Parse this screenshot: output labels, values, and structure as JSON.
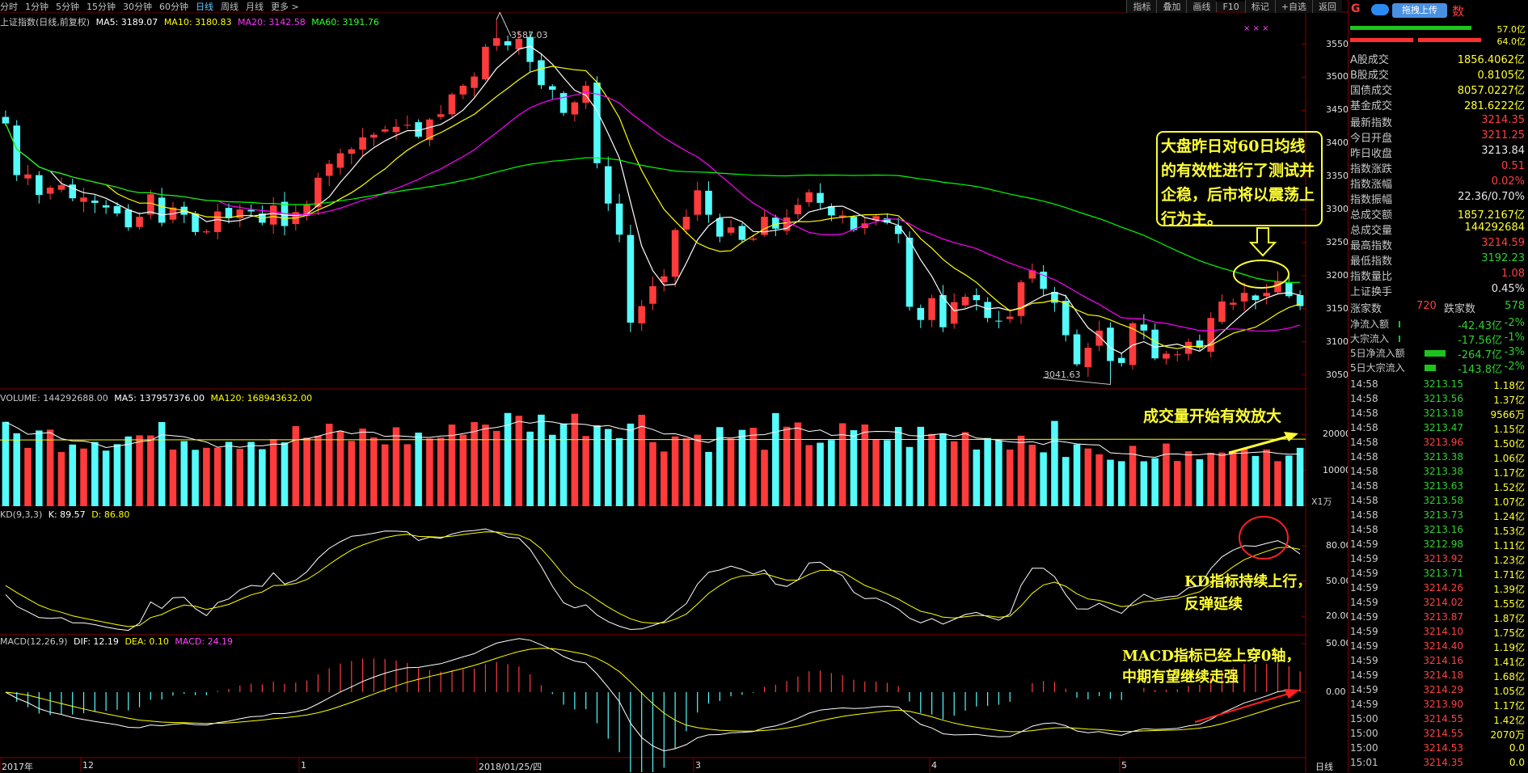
{
  "toolbar": {
    "timeframes": [
      "分时",
      "1分钟",
      "5分钟",
      "15分钟",
      "30分钟",
      "60分钟",
      "日线",
      "周线",
      "月线",
      "更多 >"
    ],
    "active": "日线",
    "right_buttons": [
      "指标",
      "叠加",
      "画线",
      "F10",
      "标记",
      "+自选",
      "返回"
    ]
  },
  "main_legend": {
    "title": "上证指数(日线,前复权)",
    "ma5": "MA5: 3189.07",
    "ma10": "MA10: 3180.83",
    "ma20": "MA20: 3142.58",
    "ma60": "MA60: 3191.76",
    "high_label": "3587.03",
    "low_label": "3041.63",
    "marks": "× × ×"
  },
  "price_axis": [
    "3550",
    "3500",
    "3450",
    "3400",
    "3350",
    "3300",
    "3250",
    "3200",
    "3150",
    "3100",
    "3050"
  ],
  "volume_legend": {
    "title": "VOLUME: 144292688.00",
    "ma5": "MA5: 137957376.00",
    "ma120": "MA120: 168943632.00",
    "unit": "X1万",
    "axis": [
      "20000",
      "10000"
    ]
  },
  "kd_legend": {
    "title": "KD(9,3,3)",
    "k": "K: 89.57",
    "d": "D: 86.80",
    "axis": [
      "80.00",
      "50.00",
      "20.00"
    ]
  },
  "macd_legend": {
    "title": "MACD(12,26,9)",
    "dif": "DIF: 12.19",
    "dea": "DEA: 0.10",
    "macd": "MACD: 24.19",
    "axis": [
      "50.00",
      "0.00"
    ]
  },
  "date_axis": {
    "labels": [
      "2017年",
      "12",
      "1",
      "2018/01/25/四",
      "3",
      "4",
      "5"
    ],
    "period": "日线"
  },
  "annotations": {
    "box": "大盘昨日对60日均线的有效性进行了测试并企稳，后市将以震荡上行为主。",
    "volume": "成交量开始有效放大",
    "kd_line1": "KD指标持续上行，",
    "kd_line2": "反弹延续",
    "macd_line1": "MACD指标已经上穿0轴，",
    "macd_line2": "中期有望继续走强"
  },
  "panel": {
    "header_left": "G",
    "upload_button": "拖拽上传",
    "header_right": "数",
    "bar_values": [
      "57.0亿",
      "64.0亿"
    ],
    "turnover": [
      {
        "k": "A股成交",
        "v": "1856.4062亿"
      },
      {
        "k": "B股成交",
        "v": "0.8105亿"
      },
      {
        "k": "国债成交",
        "v": "8057.0227亿"
      },
      {
        "k": "基金成交",
        "v": "281.6222亿"
      }
    ],
    "stats": [
      {
        "k": "最新指数",
        "v": "3214.35",
        "c": "red"
      },
      {
        "k": "今日开盘",
        "v": "3211.25",
        "c": "red"
      },
      {
        "k": "昨日收盘",
        "v": "3213.84",
        "c": "wht"
      },
      {
        "k": "指数涨跌",
        "v": "0.51",
        "c": "red"
      },
      {
        "k": "指数涨幅",
        "v": "0.02%",
        "c": "red"
      },
      {
        "k": "指数振幅",
        "v": "22.36/0.70%",
        "c": "wht"
      },
      {
        "k": "总成交额",
        "v": "1857.2167亿",
        "c": "yel"
      },
      {
        "k": "总成交量",
        "v": "144292684",
        "c": "yel"
      },
      {
        "k": "最高指数",
        "v": "3214.59",
        "c": "red"
      },
      {
        "k": "最低指数",
        "v": "3192.23",
        "c": "green"
      },
      {
        "k": "指数量比",
        "v": "1.08",
        "c": "red"
      },
      {
        "k": "上证换手",
        "v": "0.45%",
        "c": "wht"
      }
    ],
    "updown": {
      "up_label": "涨家数",
      "up": "720",
      "down_label": "跌家数",
      "down": "578"
    },
    "flows": [
      {
        "k": "净流入额",
        "v": "-42.43亿",
        "p": "-2%"
      },
      {
        "k": "大宗流入",
        "v": "-17.56亿",
        "p": "-1%"
      },
      {
        "k": "5日净流入额",
        "v": "-264.7亿",
        "p": "-3%"
      },
      {
        "k": "5日大宗流入",
        "v": "-143.8亿",
        "p": "-2%"
      }
    ],
    "ticks": [
      {
        "t": "14:58",
        "p": "3213.15",
        "q": "1.18亿",
        "c": "green"
      },
      {
        "t": "14:58",
        "p": "3213.56",
        "q": "1.37亿",
        "c": "green"
      },
      {
        "t": "14:58",
        "p": "3213.18",
        "q": "9566万",
        "c": "green"
      },
      {
        "t": "14:58",
        "p": "3213.47",
        "q": "1.15亿",
        "c": "green"
      },
      {
        "t": "14:58",
        "p": "3213.96",
        "q": "1.50亿",
        "c": "red"
      },
      {
        "t": "14:58",
        "p": "3213.38",
        "q": "1.06亿",
        "c": "green"
      },
      {
        "t": "14:58",
        "p": "3213.38",
        "q": "1.17亿",
        "c": "green"
      },
      {
        "t": "14:58",
        "p": "3213.63",
        "q": "1.52亿",
        "c": "green"
      },
      {
        "t": "14:58",
        "p": "3213.58",
        "q": "1.07亿",
        "c": "green"
      },
      {
        "t": "14:58",
        "p": "3213.73",
        "q": "1.24亿",
        "c": "green"
      },
      {
        "t": "14:58",
        "p": "3213.16",
        "q": "1.53亿",
        "c": "green"
      },
      {
        "t": "14:59",
        "p": "3212.98",
        "q": "1.11亿",
        "c": "green"
      },
      {
        "t": "14:59",
        "p": "3213.92",
        "q": "1.23亿",
        "c": "red"
      },
      {
        "t": "14:59",
        "p": "3213.71",
        "q": "1.71亿",
        "c": "green"
      },
      {
        "t": "14:59",
        "p": "3214.26",
        "q": "1.39亿",
        "c": "red"
      },
      {
        "t": "14:59",
        "p": "3214.02",
        "q": "1.55亿",
        "c": "red"
      },
      {
        "t": "14:59",
        "p": "3213.87",
        "q": "1.87亿",
        "c": "red"
      },
      {
        "t": "14:59",
        "p": "3214.10",
        "q": "1.75亿",
        "c": "red"
      },
      {
        "t": "14:59",
        "p": "3214.40",
        "q": "1.19亿",
        "c": "red"
      },
      {
        "t": "14:59",
        "p": "3214.16",
        "q": "1.41亿",
        "c": "red"
      },
      {
        "t": "14:59",
        "p": "3214.18",
        "q": "1.68亿",
        "c": "red"
      },
      {
        "t": "14:59",
        "p": "3214.29",
        "q": "1.05亿",
        "c": "red"
      },
      {
        "t": "14:59",
        "p": "3213.90",
        "q": "1.17亿",
        "c": "red"
      },
      {
        "t": "15:00",
        "p": "3214.55",
        "q": "1.42亿",
        "c": "red"
      },
      {
        "t": "15:00",
        "p": "3214.55",
        "q": "2070万",
        "c": "red"
      },
      {
        "t": "15:00",
        "p": "3214.53",
        "q": "0.0",
        "c": "red"
      },
      {
        "t": "15:01",
        "p": "3214.35",
        "q": "0.0",
        "c": "red"
      }
    ]
  },
  "colors": {
    "up": "#ff3b3b",
    "down": "#54fcfc",
    "ma5": "#ffffff",
    "ma10": "#ffff00",
    "ma20": "#ff00ff",
    "ma60": "#00ff00",
    "grid": "#8b0000",
    "annot": "#ffff33"
  },
  "chart_data": {
    "type": "candlestick",
    "title": "上证指数(日线,前复权)",
    "ylim": [
      3030,
      3580
    ],
    "x": [
      "2017-11-22",
      "2017-11-23",
      "2017-11-24",
      "2017-11-27",
      "2017-11-28",
      "2017-11-29",
      "2017-11-30",
      "2017-12-01",
      "2017-12-04",
      "2017-12-05",
      "2017-12-06",
      "2017-12-07",
      "2017-12-08",
      "2017-12-11",
      "2017-12-12",
      "2017-12-13",
      "2017-12-14",
      "2017-12-15",
      "2017-12-18",
      "2017-12-19",
      "2017-12-20",
      "2017-12-21",
      "2017-12-22",
      "2017-12-25",
      "2017-12-26",
      "2017-12-27",
      "2017-12-28",
      "2017-12-29",
      "2018-01-02",
      "2018-01-03",
      "2018-01-04",
      "2018-01-05",
      "2018-01-08",
      "2018-01-09",
      "2018-01-10",
      "2018-01-11",
      "2018-01-12",
      "2018-01-15",
      "2018-01-16",
      "2018-01-17",
      "2018-01-18",
      "2018-01-19",
      "2018-01-22",
      "2018-01-23",
      "2018-01-24",
      "2018-01-25",
      "2018-01-26",
      "2018-01-29",
      "2018-01-30",
      "2018-01-31",
      "2018-02-01",
      "2018-02-02",
      "2018-02-05",
      "2018-02-06",
      "2018-02-07",
      "2018-02-08",
      "2018-02-09",
      "2018-02-12",
      "2018-02-13",
      "2018-02-14",
      "2018-02-22",
      "2018-02-23",
      "2018-02-26",
      "2018-02-27",
      "2018-02-28",
      "2018-03-01",
      "2018-03-02",
      "2018-03-05",
      "2018-03-06",
      "2018-03-07",
      "2018-03-08",
      "2018-03-09",
      "2018-03-12",
      "2018-03-13",
      "2018-03-14",
      "2018-03-15",
      "2018-03-16",
      "2018-03-19",
      "2018-03-20",
      "2018-03-21",
      "2018-03-22",
      "2018-03-23",
      "2018-03-26",
      "2018-03-27",
      "2018-03-28",
      "2018-03-29",
      "2018-03-30",
      "2018-04-02",
      "2018-04-03",
      "2018-04-04",
      "2018-04-09",
      "2018-04-10",
      "2018-04-11",
      "2018-04-12",
      "2018-04-13",
      "2018-04-16",
      "2018-04-17",
      "2018-04-18",
      "2018-04-19",
      "2018-04-20",
      "2018-04-23",
      "2018-04-24",
      "2018-04-25",
      "2018-04-26",
      "2018-04-27",
      "2018-05-02",
      "2018-05-03",
      "2018-05-04",
      "2018-05-07",
      "2018-05-08",
      "2018-05-09",
      "2018-05-10",
      "2018-05-11",
      "2018-05-14",
      "2018-05-15",
      "2018-05-16",
      "2018-05-17"
    ],
    "close": [
      3430,
      3352,
      3353,
      3322,
      3333,
      3337,
      3317,
      3318,
      3310,
      3303,
      3294,
      3273,
      3289,
      3323,
      3280,
      3303,
      3292,
      3266,
      3267,
      3297,
      3287,
      3300,
      3297,
      3280,
      3306,
      3275,
      3296,
      3307,
      3348,
      3369,
      3385,
      3391,
      3409,
      3413,
      3421,
      3425,
      3428,
      3410,
      3436,
      3444,
      3474,
      3487,
      3501,
      3546,
      3559,
      3548,
      3558,
      3523,
      3488,
      3481,
      3446,
      3462,
      3487,
      3370,
      3309,
      3262,
      3129,
      3154,
      3184,
      3199,
      3269,
      3289,
      3329,
      3292,
      3259,
      3273,
      3254,
      3256,
      3289,
      3271,
      3288,
      3307,
      3326,
      3310,
      3291,
      3291,
      3269,
      3279,
      3290,
      3280,
      3263,
      3153,
      3133,
      3166,
      3122,
      3160,
      3168,
      3163,
      3136,
      3131,
      3138,
      3190,
      3208,
      3180,
      3159,
      3110,
      3066,
      3091,
      3117,
      3071,
      3068,
      3128,
      3117,
      3075,
      3082,
      3081,
      3100,
      3091,
      3136,
      3161,
      3159,
      3174,
      3163,
      3174,
      3192,
      3169,
      3154
    ]
  }
}
